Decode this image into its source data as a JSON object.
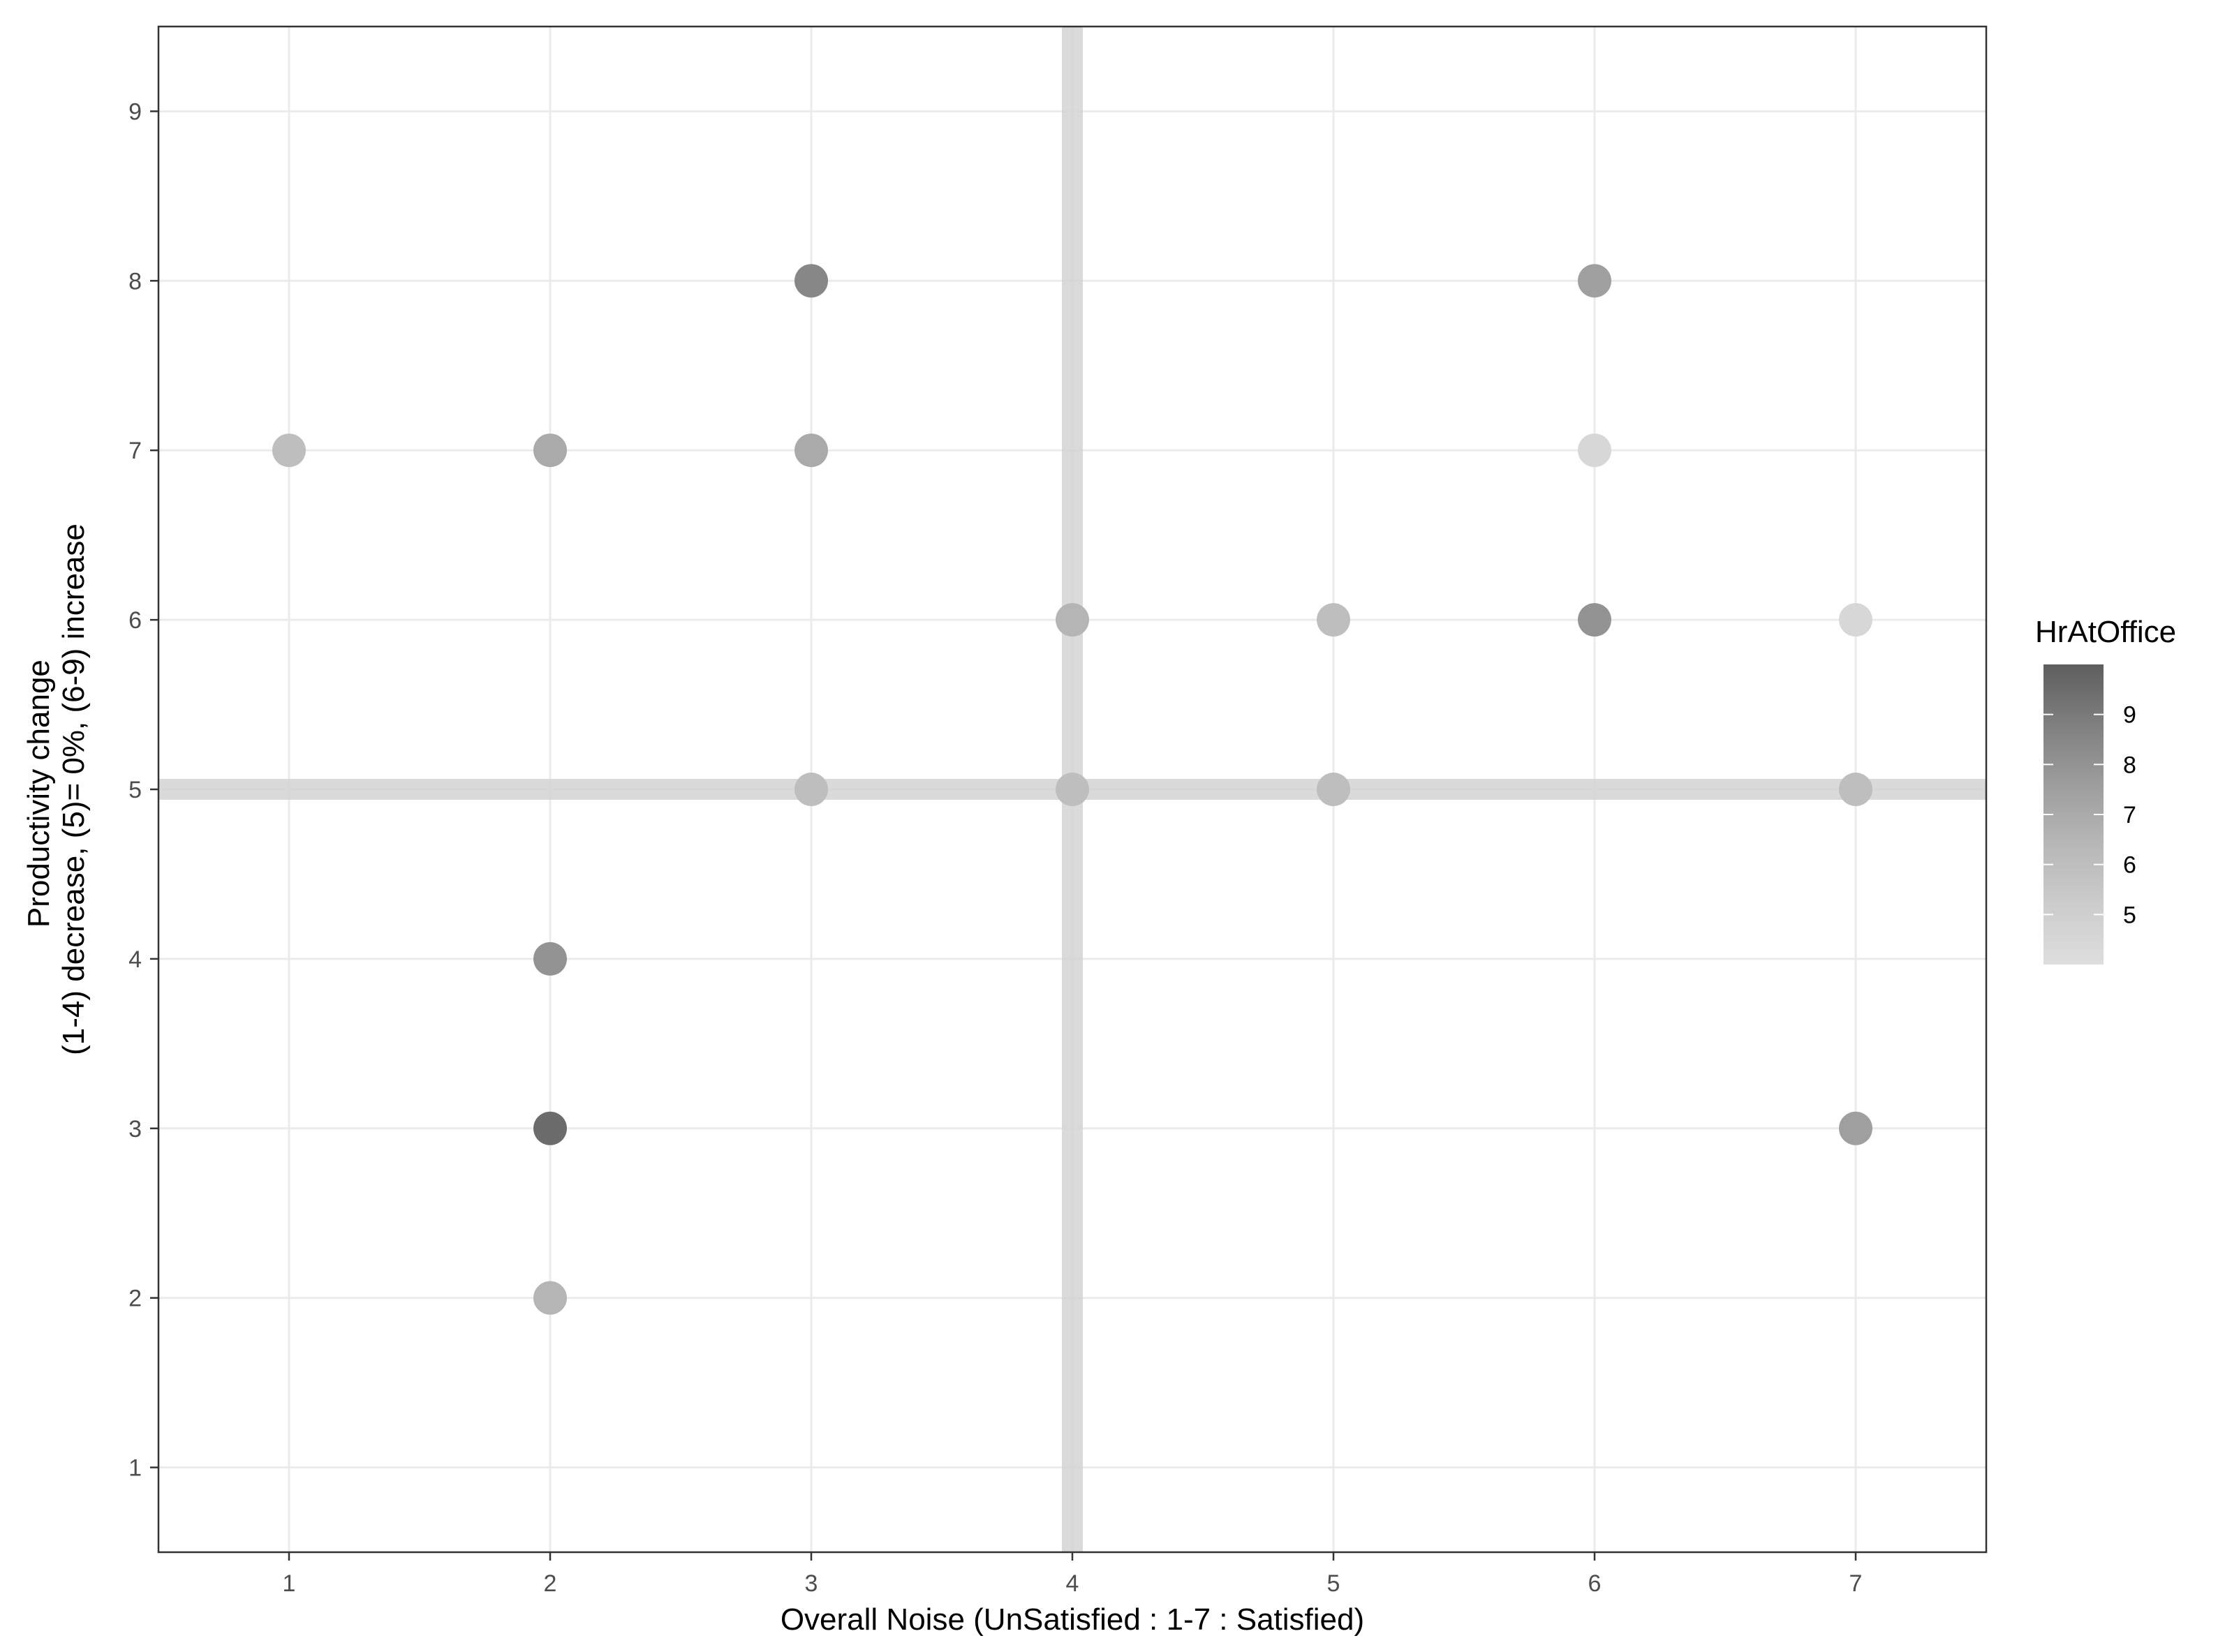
{
  "chart_data": {
    "type": "scatter",
    "title": "",
    "xlabel": "Overall Noise (UnSatisfied : 1-7 : Satisfied)",
    "ylabel_lines": [
      "Productivity change",
      "(1-4) decrease, (5)= 0%, (6-9) increase"
    ],
    "xlim": [
      0.5,
      7.5
    ],
    "ylim": [
      0.5,
      9.5
    ],
    "x_ticks": [
      1,
      2,
      3,
      4,
      5,
      6,
      7
    ],
    "y_ticks": [
      1,
      2,
      3,
      4,
      5,
      6,
      7,
      8,
      9
    ],
    "x_tick_labels": [
      "1",
      "2",
      "3",
      "4",
      "5",
      "6",
      "7"
    ],
    "y_tick_labels": [
      "1",
      "2",
      "3",
      "4",
      "5",
      "6",
      "7",
      "8",
      "9"
    ],
    "grid": true,
    "reference_lines": {
      "vertical_x": 4,
      "horizontal_y": 5,
      "color": "#d4d4d4"
    },
    "points": [
      {
        "x": 1,
        "y": 7,
        "hr": 6.0
      },
      {
        "x": 2,
        "y": 7,
        "hr": 7.0
      },
      {
        "x": 2,
        "y": 4,
        "hr": 8.0
      },
      {
        "x": 2,
        "y": 3,
        "hr": 9.5
      },
      {
        "x": 2,
        "y": 2,
        "hr": 6.5
      },
      {
        "x": 3,
        "y": 8,
        "hr": 8.5
      },
      {
        "x": 3,
        "y": 7,
        "hr": 7.0
      },
      {
        "x": 3,
        "y": 5,
        "hr": 6.0
      },
      {
        "x": 4,
        "y": 6,
        "hr": 6.5
      },
      {
        "x": 4,
        "y": 5,
        "hr": 6.0
      },
      {
        "x": 5,
        "y": 6,
        "hr": 6.0
      },
      {
        "x": 5,
        "y": 5,
        "hr": 6.0
      },
      {
        "x": 6,
        "y": 8,
        "hr": 7.5
      },
      {
        "x": 6,
        "y": 7,
        "hr": 4.5
      },
      {
        "x": 6,
        "y": 6,
        "hr": 8.0
      },
      {
        "x": 7,
        "y": 6,
        "hr": 4.5
      },
      {
        "x": 7,
        "y": 5,
        "hr": 6.0
      },
      {
        "x": 7,
        "y": 3,
        "hr": 7.5
      }
    ],
    "legend": {
      "title": "HrAtOffice",
      "placement": "right",
      "labels": [
        "9",
        "8",
        "7",
        "6",
        "5"
      ],
      "gradient_stops": [
        "#5e5e5e",
        "#7f7f7f",
        "#9d9d9d",
        "#b7b7b7",
        "#cccccc",
        "#dedede"
      ],
      "range": [
        4.0,
        10.0
      ]
    }
  }
}
